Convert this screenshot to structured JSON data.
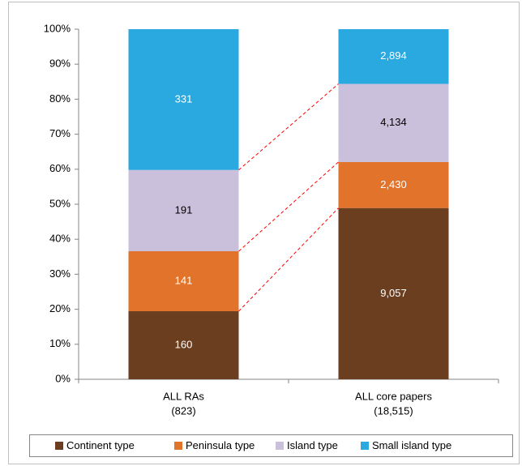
{
  "chart_data": {
    "type": "bar",
    "stacking": "percent",
    "categories": [
      "ALL RAs",
      "ALL core papers"
    ],
    "category_notes": [
      "(823)",
      "(18,515)"
    ],
    "series": [
      {
        "name": "Continent type",
        "color": "#6b3e1f",
        "label_color": "#ffffff",
        "values": [
          160,
          9057
        ],
        "value_labels": [
          "160",
          "9,057"
        ]
      },
      {
        "name": "Peninsula type",
        "color": "#e2732b",
        "label_color": "#ffffff",
        "values": [
          141,
          2430
        ],
        "value_labels": [
          "141",
          "2,430"
        ]
      },
      {
        "name": "Island type",
        "color": "#cac0db",
        "label_color": "#000000",
        "values": [
          191,
          4134
        ],
        "value_labels": [
          "191",
          "4,134"
        ]
      },
      {
        "name": "Small island type",
        "color": "#2aa9e0",
        "label_color": "#ffffff",
        "values": [
          331,
          2894
        ],
        "value_labels": [
          "331",
          "2,894"
        ]
      }
    ],
    "connector_color": "#ff0000",
    "ylim": [
      0,
      100
    ],
    "yticks": [
      {
        "value": 0,
        "label": "0%"
      },
      {
        "value": 10,
        "label": "10%"
      },
      {
        "value": 20,
        "label": "20%"
      },
      {
        "value": 30,
        "label": "30%"
      },
      {
        "value": 40,
        "label": "40%"
      },
      {
        "value": 50,
        "label": "50%"
      },
      {
        "value": 60,
        "label": "60%"
      },
      {
        "value": 70,
        "label": "70%"
      },
      {
        "value": 80,
        "label": "80%"
      },
      {
        "value": 90,
        "label": "90%"
      },
      {
        "value": 100,
        "label": "100%"
      }
    ],
    "legend": "bottom"
  }
}
